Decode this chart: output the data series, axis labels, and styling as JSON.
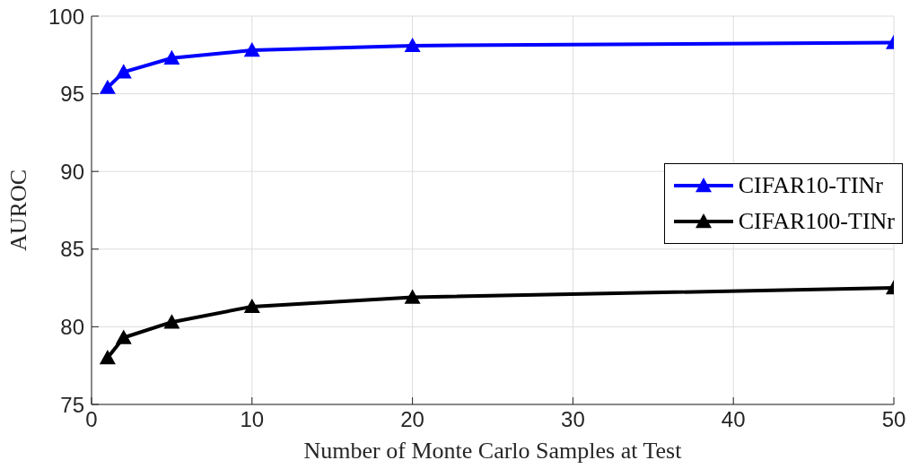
{
  "chart_data": {
    "type": "line",
    "xlabel": "Number of Monte Carlo Samples at Test",
    "ylabel": "AUROC",
    "x": [
      1,
      2,
      5,
      10,
      20,
      50
    ],
    "series": [
      {
        "name": "CIFAR10-TINr",
        "color": "#0000ff",
        "values": [
          95.4,
          96.4,
          97.3,
          97.8,
          98.1,
          98.3
        ]
      },
      {
        "name": "CIFAR100-TINr",
        "color": "#000000",
        "values": [
          78.0,
          79.3,
          80.3,
          81.3,
          81.9,
          82.5
        ]
      }
    ],
    "xlim": [
      0,
      50
    ],
    "xticks": [
      0,
      10,
      20,
      30,
      40,
      50
    ],
    "ylim": [
      75,
      100
    ],
    "yticks": [
      75,
      80,
      85,
      90,
      95,
      100
    ],
    "grid": true,
    "legend": "right",
    "marker": "triangle",
    "line_style": "solid"
  }
}
